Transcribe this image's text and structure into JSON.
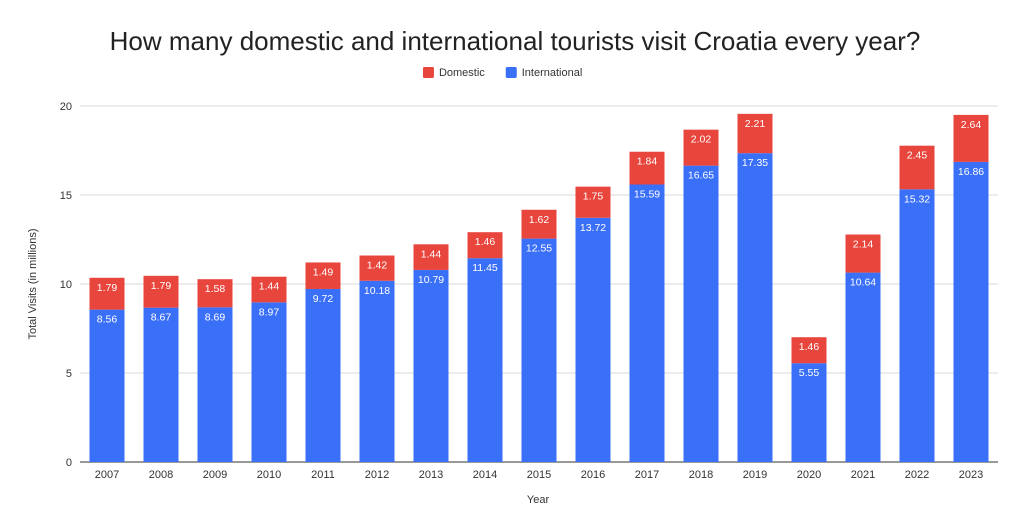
{
  "chart_data": {
    "type": "bar",
    "stacked": true,
    "title": "How many domestic and international tourists visit Croatia every year?",
    "xlabel": "Year",
    "ylabel": "Total Visits (in millions)",
    "ylim": [
      0,
      20
    ],
    "yticks": [
      0,
      5,
      10,
      15,
      20
    ],
    "grid": true,
    "legend_position": "top-center",
    "categories": [
      "2007",
      "2008",
      "2009",
      "2010",
      "2011",
      "2012",
      "2013",
      "2014",
      "2015",
      "2016",
      "2017",
      "2018",
      "2019",
      "2020",
      "2021",
      "2022",
      "2023"
    ],
    "series": [
      {
        "name": "International",
        "color": "#3a6ff7",
        "values": [
          8.56,
          8.67,
          8.69,
          8.97,
          9.72,
          10.18,
          10.79,
          11.45,
          12.55,
          13.72,
          15.59,
          16.65,
          17.35,
          5.55,
          10.64,
          15.32,
          16.86
        ]
      },
      {
        "name": "Domestic",
        "color": "#e8453c",
        "values": [
          1.79,
          1.79,
          1.58,
          1.44,
          1.49,
          1.42,
          1.44,
          1.46,
          1.62,
          1.75,
          1.84,
          2.02,
          2.21,
          1.46,
          2.14,
          2.45,
          2.64
        ]
      }
    ],
    "legend_order": [
      "Domestic",
      "International"
    ],
    "data_labels": true
  }
}
